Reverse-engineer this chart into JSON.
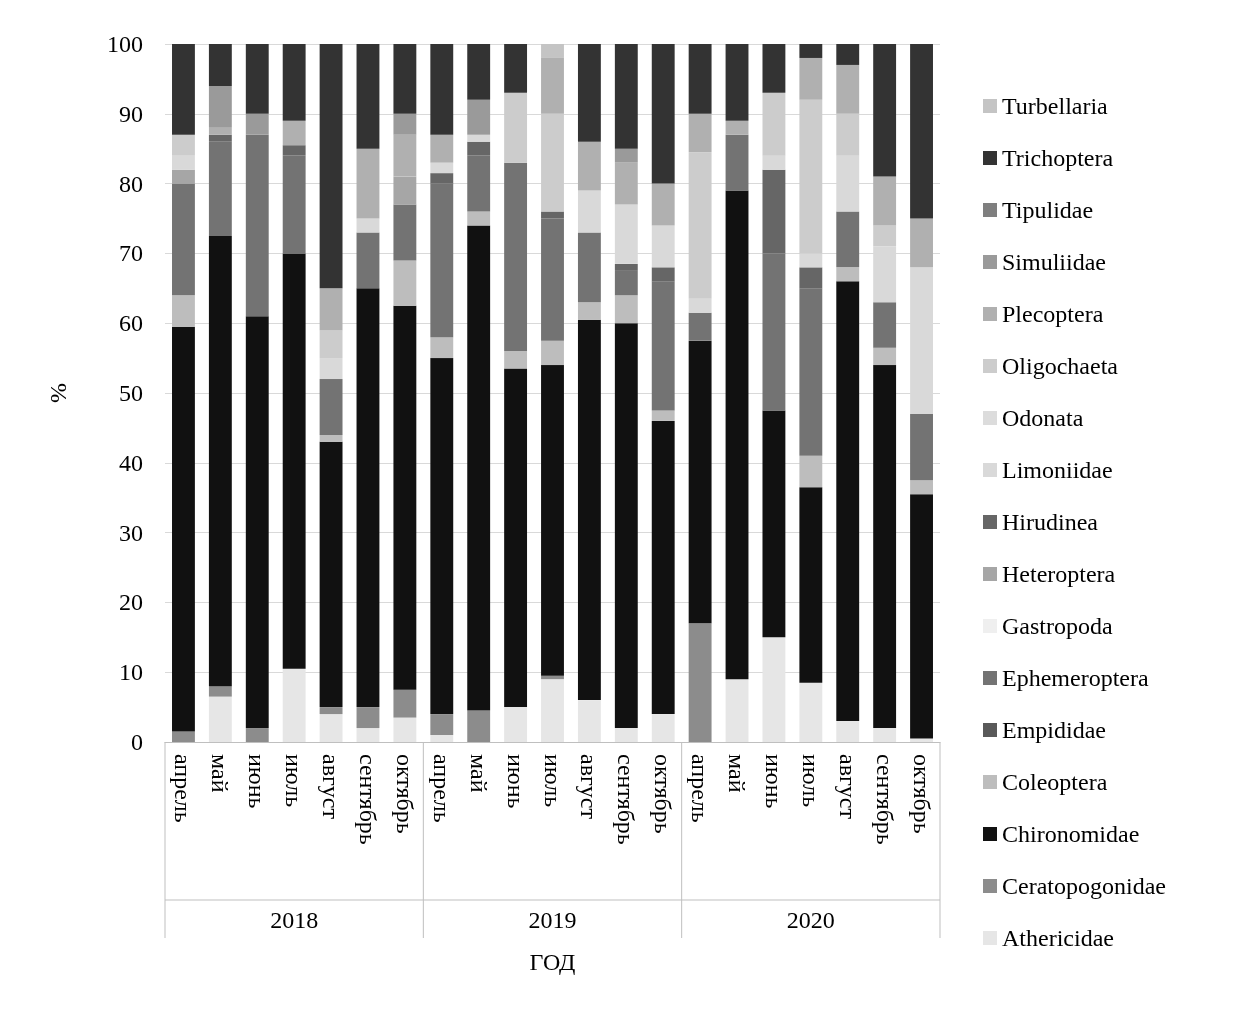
{
  "chart_data": {
    "type": "bar",
    "stacked": true,
    "xlabel": "ГОД",
    "ylabel": "%",
    "ylim": [
      0,
      100
    ],
    "yticks": [
      0,
      10,
      20,
      30,
      40,
      50,
      60,
      70,
      80,
      90,
      100
    ],
    "grid": "y",
    "legend": "right",
    "categories": [
      "апрель",
      "май",
      "июнь",
      "июль",
      "август",
      "сентябрь",
      "октябрь",
      "апрель",
      "май",
      "июнь",
      "июль",
      "август",
      "сентябрь",
      "октябрь",
      "апрель",
      "май",
      "июнь",
      "июль",
      "август",
      "сентябрь",
      "октябрь"
    ],
    "annotations": [
      "2018",
      "2019",
      "2020"
    ],
    "series": [
      {
        "name": "Athericidae",
        "color": "#e6e6e6",
        "values": [
          0,
          6.5,
          0,
          10.5,
          4,
          2,
          3.5,
          1,
          0,
          5,
          9,
          6,
          2,
          4,
          0,
          9,
          15,
          8.5,
          3,
          2,
          0.5
        ]
      },
      {
        "name": "Ceratopogonidae",
        "color": "#8c8c8c",
        "values": [
          1.5,
          1.5,
          2,
          0,
          1,
          3,
          4,
          3,
          4.5,
          0,
          0.5,
          0,
          0,
          0,
          17,
          0,
          0,
          0,
          0,
          0,
          0
        ]
      },
      {
        "name": "Chironomidae",
        "color": "#111111",
        "values": [
          58,
          64.5,
          59,
          59.5,
          38,
          60,
          55,
          51,
          69.5,
          48.5,
          44.5,
          54.5,
          58,
          42,
          40.5,
          70,
          32.5,
          28,
          63,
          52,
          35
        ]
      },
      {
        "name": "Coleoptera",
        "color": "#bdbdbd",
        "values": [
          4.5,
          0,
          0,
          0,
          1,
          0,
          6.5,
          3,
          2,
          2.5,
          3.5,
          2.5,
          4,
          1.5,
          0,
          0,
          0,
          4.5,
          2,
          2.5,
          2
        ]
      },
      {
        "name": "Empididae",
        "color": "#595959",
        "values": [
          0,
          0,
          0,
          0,
          0,
          0,
          0,
          0,
          0,
          0,
          0,
          0,
          0,
          0,
          0,
          0,
          0,
          0,
          0,
          0,
          0
        ]
      },
      {
        "name": "Ephemeroptera",
        "color": "#737373",
        "values": [
          16,
          13.5,
          26,
          14,
          8,
          8,
          8,
          22,
          8,
          27,
          17.5,
          10,
          3.5,
          18.5,
          4,
          8,
          22.5,
          24,
          8,
          6.5,
          9.5
        ]
      },
      {
        "name": "Gastropoda",
        "color": "#efefef",
        "values": [
          0,
          0,
          0,
          0,
          0,
          0,
          0,
          0,
          0,
          0,
          0,
          0,
          0,
          0,
          0,
          0,
          0,
          0,
          0,
          0,
          0
        ]
      },
      {
        "name": "Heteroptera",
        "color": "#a6a6a6",
        "values": [
          2,
          0,
          0,
          0,
          0,
          0,
          4,
          0,
          0,
          0,
          0,
          0,
          0,
          0,
          0,
          0,
          0,
          0,
          0,
          0,
          0
        ]
      },
      {
        "name": "Hirudinea",
        "color": "#666666",
        "values": [
          0,
          1,
          0,
          1.5,
          0,
          0,
          0,
          1.5,
          2,
          0,
          1,
          0,
          1,
          2,
          0,
          0,
          12,
          3,
          0,
          0,
          0
        ]
      },
      {
        "name": "Limoniidae",
        "color": "#d9d9d9",
        "values": [
          2,
          0,
          0,
          0,
          3,
          2,
          0,
          1.5,
          1,
          0,
          0,
          6,
          8.5,
          6,
          2,
          0,
          2,
          2,
          8,
          8,
          21
        ]
      },
      {
        "name": "Odonata",
        "color": "#dcdcdc",
        "values": [
          0,
          0,
          0,
          0,
          0,
          0,
          0,
          0,
          0,
          0,
          0,
          0,
          0,
          0,
          0,
          0,
          0,
          0,
          0,
          0,
          0
        ]
      },
      {
        "name": "Oligochaeta",
        "color": "#cccccc",
        "values": [
          3,
          0,
          0,
          0,
          4,
          0,
          0,
          0,
          0,
          10,
          14,
          0,
          0,
          0,
          21,
          0,
          9,
          22,
          6,
          3,
          0
        ]
      },
      {
        "name": "Plecoptera",
        "color": "#b0b0b0",
        "values": [
          0,
          1,
          0,
          3.5,
          6,
          10,
          6,
          4,
          0,
          0,
          8,
          7,
          6,
          6,
          5.5,
          2,
          0,
          6,
          7,
          7,
          7
        ]
      },
      {
        "name": "Simuliidae",
        "color": "#9a9a9a",
        "values": [
          0,
          6,
          3,
          0,
          0,
          0,
          3,
          0,
          5,
          0,
          0,
          0,
          2,
          0,
          0,
          0,
          0,
          0,
          0,
          0,
          0
        ]
      },
      {
        "name": "Tipulidae",
        "color": "#7f7f7f",
        "values": [
          0,
          0,
          0,
          0,
          0,
          0,
          0,
          0,
          0,
          0,
          0,
          0,
          0,
          0,
          0,
          0,
          0,
          0,
          0,
          0,
          0
        ]
      },
      {
        "name": "Trichoptera",
        "color": "#333333",
        "values": [
          13,
          6,
          10,
          11,
          35,
          15,
          10,
          13,
          8,
          7,
          0,
          14,
          15,
          20,
          10,
          11,
          7,
          2,
          3,
          19,
          25
        ]
      },
      {
        "name": "Turbellaria",
        "color": "#c4c4c4",
        "values": [
          0,
          0,
          0,
          0,
          0,
          0,
          0,
          0,
          0,
          0,
          2,
          0,
          0,
          0,
          0,
          0,
          0,
          0,
          0,
          0,
          0
        ]
      }
    ]
  }
}
